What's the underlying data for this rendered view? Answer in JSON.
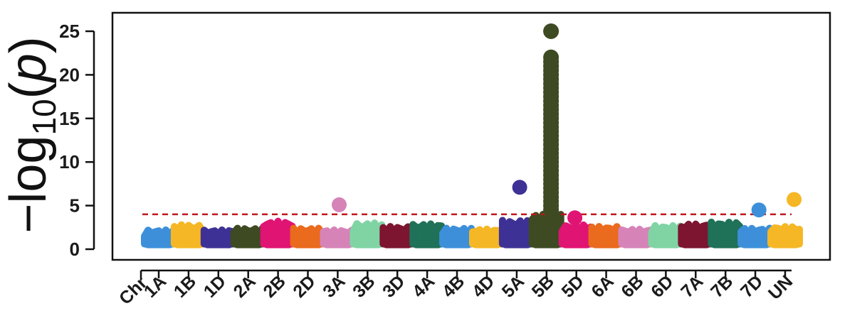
{
  "chart_data": {
    "type": "scatter",
    "title": "",
    "xlabel_prefix": "Chr",
    "ylabel": {
      "prefix": "−log",
      "subscript": "10",
      "open": "(",
      "variable": "p",
      "close": ")"
    },
    "ylim": [
      0,
      27
    ],
    "yticks": [
      0,
      5,
      10,
      15,
      20,
      25
    ],
    "threshold": 4,
    "threshold_color": "#c0161c",
    "grid": false,
    "chromosomes": [
      {
        "label": "1A",
        "color": "#3d8fd9",
        "max": 2.2
      },
      {
        "label": "1B",
        "color": "#f5b725",
        "max": 2.8
      },
      {
        "label": "1D",
        "color": "#3e3196",
        "max": 2.2
      },
      {
        "label": "2A",
        "color": "#3e4a22",
        "max": 2.4
      },
      {
        "label": "2B",
        "color": "#e01473",
        "max": 3.2
      },
      {
        "label": "2D",
        "color": "#ea6a1e",
        "max": 2.4
      },
      {
        "label": "3A",
        "color": "#d683b8",
        "max": 2.2
      },
      {
        "label": "3B",
        "color": "#80d4a4",
        "max": 3.0
      },
      {
        "label": "3D",
        "color": "#7d1530",
        "max": 2.6
      },
      {
        "label": "4A",
        "color": "#1f7158",
        "max": 2.9
      },
      {
        "label": "4B",
        "color": "#3d8fd9",
        "max": 2.4
      },
      {
        "label": "4D",
        "color": "#f5b725",
        "max": 2.3
      },
      {
        "label": "5A",
        "color": "#3e3196",
        "max": 3.3
      },
      {
        "label": "5B",
        "color": "#3e4a22",
        "max": 4.0
      },
      {
        "label": "5D",
        "color": "#e01473",
        "max": 2.8
      },
      {
        "label": "6A",
        "color": "#ea6a1e",
        "max": 2.6
      },
      {
        "label": "6B",
        "color": "#d683b8",
        "max": 2.3
      },
      {
        "label": "6D",
        "color": "#80d4a4",
        "max": 2.7
      },
      {
        "label": "7A",
        "color": "#7d1530",
        "max": 2.9
      },
      {
        "label": "7B",
        "color": "#1f7158",
        "max": 3.1
      },
      {
        "label": "7D",
        "color": "#3d8fd9",
        "max": 2.4
      },
      {
        "label": "UN",
        "color": "#f5b725",
        "max": 2.6
      }
    ],
    "significant_points": [
      {
        "chromosome": "3A",
        "y": 5.1
      },
      {
        "chromosome": "5A",
        "y": 7.1
      },
      {
        "chromosome": "5D",
        "y": 3.6
      },
      {
        "chromosome": "7D",
        "y": 4.5
      },
      {
        "chromosome": "UN",
        "y": 5.7
      }
    ],
    "peak": {
      "chromosome": "5B",
      "values": [
        4.5,
        5.0,
        5.5,
        6.0,
        6.5,
        7.0,
        7.5,
        8.0,
        8.5,
        9.0,
        9.5,
        10.0,
        10.5,
        11.0,
        11.5,
        12.0,
        12.5,
        13.0,
        13.5,
        14.0,
        14.5,
        15.0,
        15.5,
        16.0,
        16.5,
        17.0,
        17.5,
        18.0,
        18.5,
        19.0,
        19.5,
        20.0,
        20.5,
        21.0,
        21.5,
        22.0,
        25.0
      ]
    }
  }
}
